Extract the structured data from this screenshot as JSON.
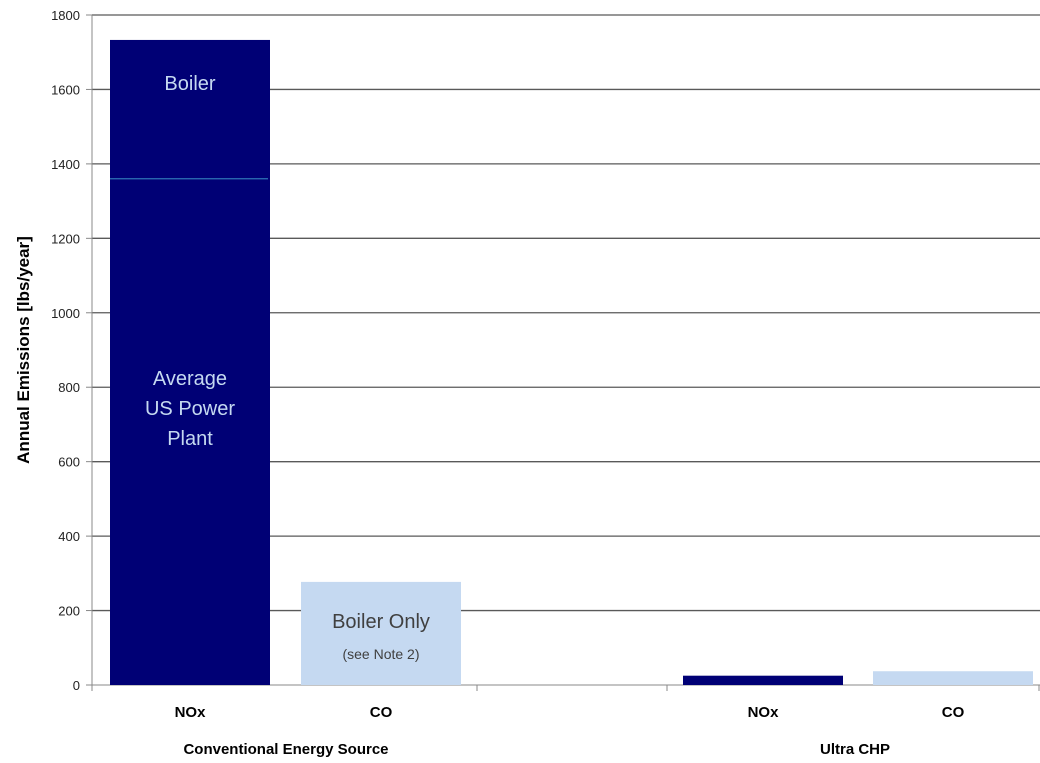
{
  "colors": {
    "nox": "#000075",
    "co": "#c5d9f1",
    "grid": "#595959",
    "divider": "#2e75b6",
    "label_on_dark": "#c5d9f1",
    "label_on_light": "#404040"
  },
  "chart_data": {
    "type": "bar",
    "ylabel": "Annual Emissions [lbs/year]",
    "ylim": [
      0,
      1800
    ],
    "yticks": [
      0,
      200,
      400,
      600,
      800,
      1000,
      1200,
      1400,
      1600,
      1800
    ],
    "grid": true,
    "groups": [
      {
        "label": "Conventional Energy Source",
        "bars": [
          {
            "category": "NOx",
            "value": 1733,
            "color_key": "nox",
            "segments": [
              {
                "label": "Average US Power Plant",
                "value": 1360
              },
              {
                "label": "Boiler",
                "value": 373
              }
            ]
          },
          {
            "category": "CO",
            "value": 277,
            "color_key": "co",
            "annotation": {
              "label": "Boiler Only",
              "note": "(see Note 2)"
            }
          }
        ]
      },
      {
        "label": "Ultra CHP",
        "bars": [
          {
            "category": "NOx",
            "value": 25,
            "color_key": "nox"
          },
          {
            "category": "CO",
            "value": 37,
            "color_key": "co"
          }
        ]
      }
    ]
  }
}
